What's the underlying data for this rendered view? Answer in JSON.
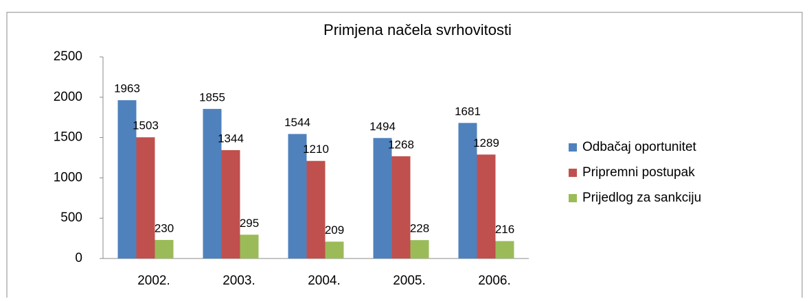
{
  "chart_data": {
    "type": "bar",
    "title": "Primjena načela svrhovitosti",
    "categories": [
      "2002.",
      "2003.",
      "2004.",
      "2005.",
      "2006."
    ],
    "series": [
      {
        "name": "Odbačaj oportunitet",
        "color": "#4f81bd",
        "values": [
          1963,
          1855,
          1544,
          1494,
          1681
        ]
      },
      {
        "name": "Pripremni postupak",
        "color": "#c0504d",
        "values": [
          1503,
          1344,
          1210,
          1268,
          1289
        ]
      },
      {
        "name": "Prijedlog za sankciju",
        "color": "#9bbb59",
        "values": [
          230,
          295,
          209,
          228,
          216
        ]
      }
    ],
    "ylim": [
      0,
      2500
    ],
    "yticks": [
      0,
      500,
      1000,
      1500,
      2000,
      2500
    ],
    "grid": false,
    "legend": "right"
  }
}
